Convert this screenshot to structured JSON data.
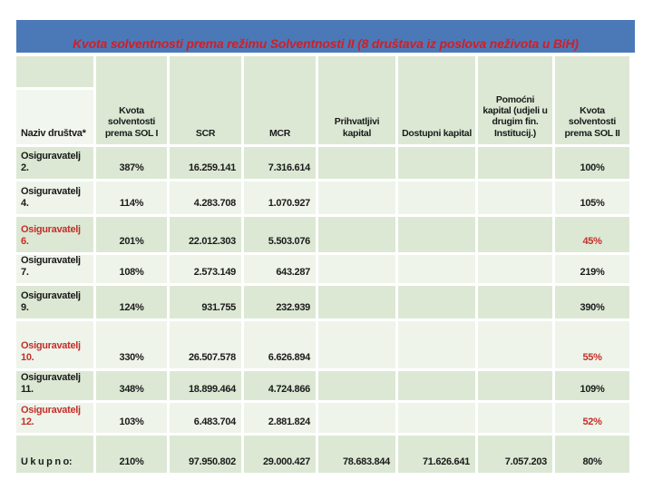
{
  "title": "Kvota solventnosti prema režimu Solventnosti II (8 društava iz poslova neživota u BiH)",
  "accent_colors": {
    "banner_blue": "#4b79b8",
    "title_red": "#cf1f27",
    "highlight_red": "#c32f2a",
    "row_green": "#dce8d4",
    "row_pale": "#eef4ea"
  },
  "table": {
    "columns": [
      {
        "key": "label",
        "label": "Naziv društva*"
      },
      {
        "key": "sol1",
        "label": "Kvota solventosti prema SOL I"
      },
      {
        "key": "scr",
        "label": "SCR"
      },
      {
        "key": "mcr",
        "label": "MCR"
      },
      {
        "key": "prihvatljivi",
        "label": "Prihvatljivi kapital"
      },
      {
        "key": "dostupni",
        "label": "Dostupni kapital"
      },
      {
        "key": "pomocni",
        "label": "Pomoćni kapital (udjeli u drugim fin. Institucij.)"
      },
      {
        "key": "sol2",
        "label": "Kvota solventosti prema SOL II"
      }
    ],
    "rows": [
      {
        "label": "Osiguravatelj\n2.",
        "sol1": "387%",
        "scr": "16.259.141",
        "mcr": "7.316.614",
        "prihvatljivi": "",
        "dostupni": "",
        "pomocni": "",
        "sol2": "100%",
        "highlight": false
      },
      {
        "label": "Osiguravatelj\n4.",
        "sol1": "114%",
        "scr": "4.283.708",
        "mcr": "1.070.927",
        "prihvatljivi": "",
        "dostupni": "",
        "pomocni": "",
        "sol2": "105%",
        "highlight": false
      },
      {
        "label": "Osiguravatelj\n6.",
        "sol1": "201%",
        "scr": "22.012.303",
        "mcr": "5.503.076",
        "prihvatljivi": "",
        "dostupni": "",
        "pomocni": "",
        "sol2": "45%",
        "highlight": true
      },
      {
        "label": "Osiguravatelj\n7.",
        "sol1": "108%",
        "scr": "2.573.149",
        "mcr": "643.287",
        "prihvatljivi": "",
        "dostupni": "",
        "pomocni": "",
        "sol2": "219%",
        "highlight": false
      },
      {
        "label": "Osiguravatelj\n9.",
        "sol1": "124%",
        "scr": "931.755",
        "mcr": "232.939",
        "prihvatljivi": "",
        "dostupni": "",
        "pomocni": "",
        "sol2": "390%",
        "highlight": false
      },
      {
        "label": "Osiguravatelj\n10.",
        "sol1": "330%",
        "scr": "26.507.578",
        "mcr": "6.626.894",
        "prihvatljivi": "",
        "dostupni": "",
        "pomocni": "",
        "sol2": "55%",
        "highlight": true
      },
      {
        "label": "Osiguravatelj\n11.",
        "sol1": "348%",
        "scr": "18.899.464",
        "mcr": "4.724.866",
        "prihvatljivi": "",
        "dostupni": "",
        "pomocni": "",
        "sol2": "109%",
        "highlight": false
      },
      {
        "label": "Osiguravatelj\n12.",
        "sol1": "103%",
        "scr": "6.483.704",
        "mcr": "2.881.824",
        "prihvatljivi": "",
        "dostupni": "",
        "pomocni": "",
        "sol2": "52%",
        "highlight": true
      },
      {
        "label": "U k u p n o:",
        "sol1": "210%",
        "scr": "97.950.802",
        "mcr": "29.000.427",
        "prihvatljivi": "78.683.844",
        "dostupni": "71.626.641",
        "pomocni": "7.057.203",
        "sol2": "80%",
        "highlight": false
      }
    ]
  }
}
